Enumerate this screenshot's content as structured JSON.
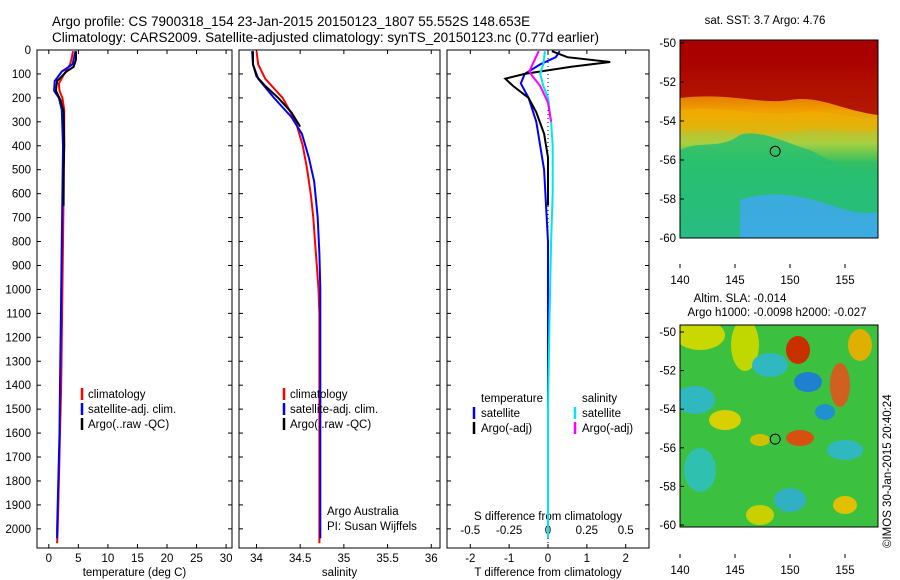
{
  "header": {
    "title_line1": "Argo profile: CS 7900318_154 23-Jan-2015 20150123_1807 55.552S 148.653E",
    "title_line2": "Climatology: CARS2009. Satellite-adjusted climatology: synTS_20150123.nc (0.77d earlier)"
  },
  "chart_data": [
    {
      "id": "temperature",
      "type": "line",
      "xlabel": "temperature (deg C)",
      "ylabel": "",
      "xlim": [
        -2,
        31
      ],
      "ylim": [
        2080,
        0
      ],
      "xticks": [
        0,
        5,
        10,
        15,
        20,
        25,
        30
      ],
      "yticks": [
        0,
        100,
        200,
        300,
        400,
        500,
        600,
        700,
        800,
        900,
        1000,
        1100,
        1200,
        1300,
        1400,
        1500,
        1600,
        1700,
        1800,
        1900,
        2000
      ],
      "legend": {
        "position": "lower-middle",
        "entries": [
          {
            "label": "climatology",
            "color": "#ff0000"
          },
          {
            "label": "satellite-adj. clim.",
            "color": "#0000ff"
          },
          {
            "label": "Argo(..raw -QC)",
            "color": "#000000"
          }
        ]
      },
      "series": [
        {
          "name": "climatology",
          "color": "#ff0000",
          "points": [
            [
              4.1,
              5
            ],
            [
              3.9,
              30
            ],
            [
              3.6,
              60
            ],
            [
              2.6,
              100
            ],
            [
              1.7,
              140
            ],
            [
              1.8,
              170
            ],
            [
              2.3,
              200
            ],
            [
              2.6,
              250
            ],
            [
              2.6,
              400
            ],
            [
              2.5,
              600
            ],
            [
              2.4,
              800
            ],
            [
              2.3,
              1000
            ],
            [
              2.2,
              1200
            ],
            [
              2.1,
              1400
            ],
            [
              1.9,
              1600
            ],
            [
              1.7,
              1800
            ],
            [
              1.5,
              2000
            ],
            [
              1.4,
              2060
            ]
          ]
        },
        {
          "name": "satellite-adj. clim.",
          "color": "#0000ff",
          "points": [
            [
              4.5,
              5
            ],
            [
              4.3,
              30
            ],
            [
              4.0,
              60
            ],
            [
              2.2,
              90
            ],
            [
              1.0,
              130
            ],
            [
              0.9,
              170
            ],
            [
              1.7,
              200
            ],
            [
              2.2,
              250
            ],
            [
              2.4,
              400
            ],
            [
              2.3,
              600
            ],
            [
              2.2,
              800
            ],
            [
              2.1,
              1000
            ],
            [
              2.0,
              1200
            ],
            [
              1.9,
              1400
            ],
            [
              1.8,
              1600
            ],
            [
              1.6,
              1800
            ],
            [
              1.4,
              2000
            ],
            [
              1.4,
              2040
            ]
          ]
        },
        {
          "name": "Argo(..raw -QC)",
          "color": "#000000",
          "points": [
            [
              4.6,
              5
            ],
            [
              4.6,
              40
            ],
            [
              4.2,
              70
            ],
            [
              3.0,
              90
            ],
            [
              1.4,
              130
            ],
            [
              1.2,
              170
            ],
            [
              2.0,
              210
            ],
            [
              2.5,
              260
            ],
            [
              2.6,
              400
            ],
            [
              2.5,
              500
            ],
            [
              2.5,
              650
            ]
          ]
        }
      ]
    },
    {
      "id": "salinity",
      "type": "line",
      "xlabel": "salinity",
      "ylabel": "",
      "xlim": [
        33.8,
        36.1
      ],
      "ylim": [
        2080,
        0
      ],
      "xticks": [
        34,
        34.5,
        35,
        35.5,
        36
      ],
      "legend": {
        "position": "lower-middle",
        "entries": [
          {
            "label": "climatology",
            "color": "#ff0000"
          },
          {
            "label": "satellite-adj. clim.",
            "color": "#0000ff"
          },
          {
            "label": "Argo(..raw -QC)",
            "color": "#000000"
          }
        ]
      },
      "annotation": [
        "Argo Australia",
        "PI: Susan Wijffels"
      ],
      "series": [
        {
          "name": "climatology",
          "color": "#ff0000",
          "points": [
            [
              34.0,
              5
            ],
            [
              34.02,
              60
            ],
            [
              34.1,
              120
            ],
            [
              34.3,
              200
            ],
            [
              34.45,
              300
            ],
            [
              34.53,
              400
            ],
            [
              34.58,
              500
            ],
            [
              34.62,
              600
            ],
            [
              34.65,
              700
            ],
            [
              34.67,
              800
            ],
            [
              34.69,
              900
            ],
            [
              34.71,
              1000
            ],
            [
              34.72,
              1100
            ],
            [
              34.72,
              1200
            ],
            [
              34.72,
              1500
            ],
            [
              34.72,
              2000
            ],
            [
              34.72,
              2060
            ]
          ]
        },
        {
          "name": "satellite-adj. clim.",
          "color": "#0000ff",
          "points": [
            [
              33.95,
              5
            ],
            [
              33.96,
              60
            ],
            [
              34.02,
              120
            ],
            [
              34.2,
              200
            ],
            [
              34.4,
              280
            ],
            [
              34.52,
              350
            ],
            [
              34.6,
              450
            ],
            [
              34.66,
              550
            ],
            [
              34.7,
              700
            ],
            [
              34.72,
              850
            ],
            [
              34.73,
              1000
            ],
            [
              34.73,
              1200
            ],
            [
              34.73,
              1500
            ],
            [
              34.73,
              2000
            ],
            [
              34.73,
              2040
            ]
          ]
        },
        {
          "name": "Argo(..raw -QC)",
          "color": "#000000",
          "points": [
            [
              33.96,
              5
            ],
            [
              33.96,
              60
            ],
            [
              34.0,
              110
            ],
            [
              34.1,
              150
            ],
            [
              34.25,
              200
            ],
            [
              34.4,
              260
            ],
            [
              34.5,
              320
            ]
          ]
        }
      ]
    },
    {
      "id": "difference",
      "type": "line",
      "xlabel": "T difference from climatology",
      "xlabel_top": "S difference from climatology",
      "xlim": [
        -2.6,
        2.6
      ],
      "ylim": [
        2080,
        0
      ],
      "xticks_T": [
        -2,
        -1,
        0,
        1,
        2
      ],
      "xticks_S": [
        "-0.5",
        "-0.25",
        "0",
        "0.25",
        "0.5"
      ],
      "legend": {
        "temperature": {
          "header": "temperature",
          "entries": [
            {
              "label": "satellite",
              "color": "#0000ff"
            },
            {
              "label": "Argo(-adj)",
              "color": "#000000"
            }
          ]
        },
        "salinity": {
          "header": "salinity",
          "entries": [
            {
              "label": "satellite",
              "color": "#00e5ee"
            },
            {
              "label": "Argo(-adj)",
              "color": "#ff00ff"
            }
          ]
        }
      },
      "series": [
        {
          "name": "T satellite",
          "color": "#0000ff",
          "points": [
            [
              0.3,
              5
            ],
            [
              0.2,
              30
            ],
            [
              -0.2,
              60
            ],
            [
              -0.6,
              100
            ],
            [
              -0.7,
              140
            ],
            [
              -0.5,
              200
            ],
            [
              -0.3,
              300
            ],
            [
              -0.2,
              400
            ],
            [
              -0.1,
              500
            ],
            [
              0.0,
              800
            ],
            [
              0.0,
              1200
            ],
            [
              0.0,
              2040
            ]
          ]
        },
        {
          "name": "T Argo(-adj)",
          "color": "#000000",
          "points": [
            [
              0.1,
              5
            ],
            [
              0.5,
              30
            ],
            [
              1.6,
              50
            ],
            [
              0.6,
              70
            ],
            [
              -0.6,
              100
            ],
            [
              -1.1,
              120
            ],
            [
              -0.9,
              150
            ],
            [
              -0.5,
              200
            ],
            [
              -0.3,
              260
            ],
            [
              -0.1,
              350
            ],
            [
              0.0,
              450
            ],
            [
              0.0,
              650
            ]
          ]
        },
        {
          "name": "S satellite",
          "color": "#00e5ee",
          "points": [
            [
              -0.02,
              5
            ],
            [
              -0.03,
              60
            ],
            [
              -0.05,
              100
            ],
            [
              -0.03,
              150
            ],
            [
              0.0,
              200
            ],
            [
              0.02,
              300
            ],
            [
              0.03,
              400
            ],
            [
              0.03,
              600
            ],
            [
              0.02,
              800
            ],
            [
              0.01,
              1100
            ],
            [
              0.0,
              1500
            ],
            [
              0.0,
              2040
            ]
          ]
        },
        {
          "name": "S Argo(-adj)",
          "color": "#ff00ff",
          "points": [
            [
              -0.06,
              5
            ],
            [
              -0.1,
              60
            ],
            [
              -0.12,
              90
            ],
            [
              -0.1,
              110
            ],
            [
              -0.05,
              150
            ],
            [
              0.0,
              220
            ],
            [
              0.02,
              300
            ]
          ]
        }
      ]
    }
  ],
  "maps": {
    "sst": {
      "title": "sat. SST: 3.7 Argo: 4.76",
      "xticks": [
        "140",
        "145",
        "150",
        "155"
      ],
      "yticks": [
        "-50",
        "-52",
        "-54",
        "-56",
        "-58",
        "-60"
      ],
      "float_lon": 148.653,
      "float_lat": -55.552
    },
    "sla": {
      "title_line1": "Altim. SLA: -0.014",
      "title_line2": "Argo h1000: -0.0098 h2000: -0.027",
      "xticks": [
        "140",
        "145",
        "150",
        "155"
      ],
      "yticks": [
        "-50",
        "-52",
        "-54",
        "-56",
        "-58",
        "-60"
      ],
      "float_lon": 148.653,
      "float_lat": -55.552
    }
  },
  "credit": "©IMOS 30-Jan-2015 20:40:24"
}
